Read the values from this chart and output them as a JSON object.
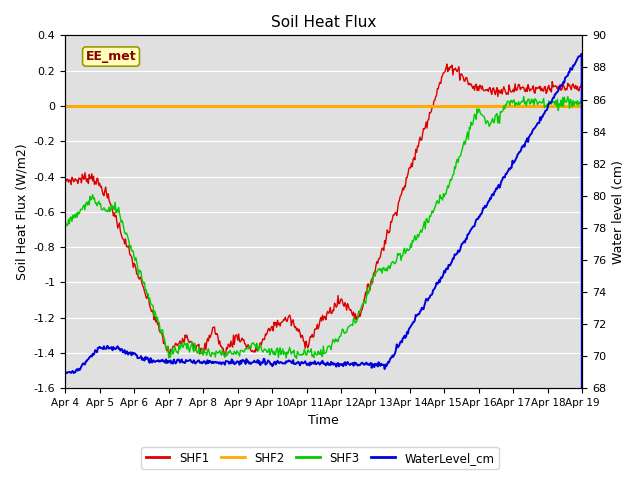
{
  "title": "Soil Heat Flux",
  "ylabel_left": "Soil Heat Flux (W/m2)",
  "ylabel_right": "Water level (cm)",
  "xlabel": "Time",
  "annotation": "EE_met",
  "ylim_left": [
    -1.6,
    0.4
  ],
  "ylim_right": [
    68,
    90
  ],
  "yticks_left": [
    -1.6,
    -1.4,
    -1.2,
    -1.0,
    -0.8,
    -0.6,
    -0.4,
    -0.2,
    0.0,
    0.2,
    0.4
  ],
  "yticks_right": [
    68,
    70,
    72,
    74,
    76,
    78,
    80,
    82,
    84,
    86,
    88,
    90
  ],
  "xtick_labels": [
    "Apr 4",
    "Apr 5",
    "Apr 6",
    "Apr 7",
    "Apr 8",
    "Apr 9",
    "Apr 10",
    "Apr 11",
    "Apr 12",
    "Apr 13",
    "Apr 14",
    "Apr 15",
    "Apr 16",
    "Apr 17",
    "Apr 18",
    "Apr 19"
  ],
  "n_days": 15,
  "colors": {
    "SHF1": "#dd0000",
    "SHF2": "#ffaa00",
    "SHF3": "#00cc00",
    "WaterLevel_cm": "#0000dd",
    "background": "#e0e0e0",
    "annotation_bg": "#ffffbb",
    "annotation_border": "#999900"
  }
}
